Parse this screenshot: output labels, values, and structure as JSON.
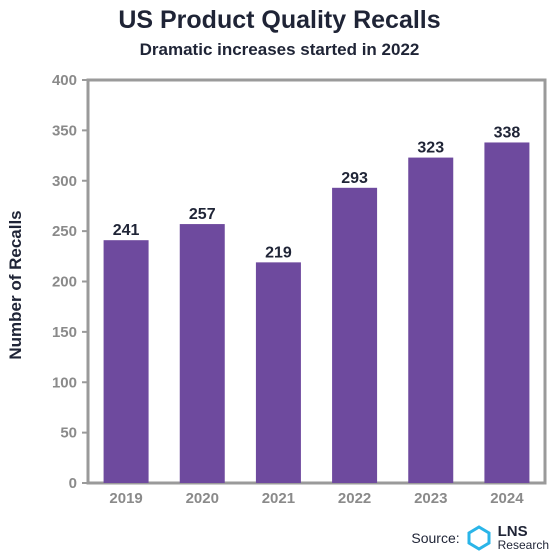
{
  "chart_data": {
    "type": "bar",
    "title": "US Product Quality Recalls",
    "subtitle": "Dramatic increases started in 2022",
    "ylabel": "Number of Recalls",
    "xlabel": "",
    "categories": [
      "2019",
      "2020",
      "2021",
      "2022",
      "2023",
      "2024"
    ],
    "values": [
      241,
      257,
      219,
      293,
      323,
      338
    ],
    "data_labels": [
      "241",
      "257",
      "219",
      "293",
      "323",
      "338"
    ],
    "ylim": [
      0,
      400
    ],
    "yticks": [
      0,
      50,
      100,
      150,
      200,
      250,
      300,
      350,
      400
    ],
    "grid": false,
    "bar_color": "#6e4a9e",
    "axis_color": "#9a9a9a"
  },
  "source": {
    "label": "Source:",
    "logo_name": "LNS",
    "logo_sub": "Research",
    "logo_icon": "lns-logo-icon",
    "logo_color": "#2ab5e8"
  }
}
